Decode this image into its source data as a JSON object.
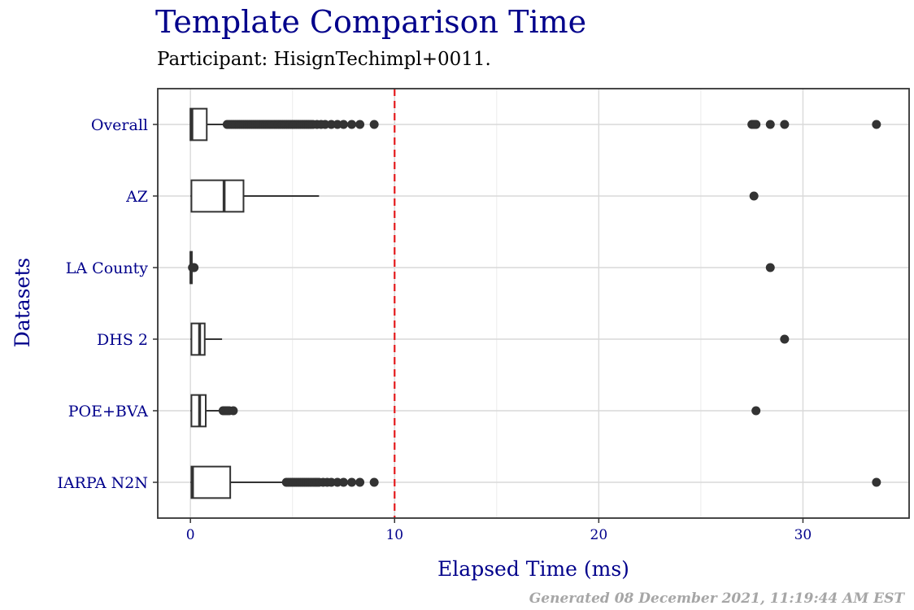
{
  "chart_data": {
    "type": "boxplot",
    "orientation": "horizontal",
    "title": "Template Comparison Time",
    "subtitle": "Participant: HisignTechimpl+0011.",
    "xlabel": "Elapsed Time (ms)",
    "ylabel": "Datasets",
    "xlim": [
      -1.6,
      35.2
    ],
    "x_ticks": [
      0,
      10,
      20,
      30
    ],
    "threshold_line": {
      "value": 10,
      "color": "#e41a1c",
      "style": "dashed"
    },
    "grid": true,
    "categories": [
      "Overall",
      "AZ",
      "LA County",
      "DHS 2",
      "POE+BVA",
      "IARPA N2N"
    ],
    "boxes": [
      {
        "name": "Overall",
        "min": 0.0,
        "q1": 0.0,
        "median": 0.07,
        "q3": 0.8,
        "whisker_high": 1.7,
        "outliers": [
          1.8,
          1.9,
          2.0,
          2.1,
          2.2,
          2.3,
          2.4,
          2.5,
          2.6,
          2.7,
          2.8,
          2.9,
          3.0,
          3.1,
          3.2,
          3.3,
          3.4,
          3.5,
          3.6,
          3.7,
          3.8,
          3.9,
          4.0,
          4.1,
          4.2,
          4.3,
          4.4,
          4.5,
          4.6,
          4.7,
          4.8,
          4.9,
          5.0,
          5.1,
          5.2,
          5.3,
          5.4,
          5.5,
          5.6,
          5.7,
          5.8,
          5.9,
          6.0,
          6.2,
          6.4,
          6.6,
          6.9,
          7.2,
          7.5,
          7.9,
          8.3,
          9.0,
          27.5,
          27.6,
          27.7,
          28.4,
          29.1,
          33.6
        ]
      },
      {
        "name": "AZ",
        "min": 0.0,
        "q1": 0.05,
        "median": 1.65,
        "q3": 2.6,
        "whisker_high": 6.3,
        "outliers": [
          27.6
        ]
      },
      {
        "name": "LA County",
        "min": 0.0,
        "q1": 0.0,
        "median": 0.03,
        "q3": 0.07,
        "whisker_high": 0.1,
        "outliers": [
          0.1,
          0.12,
          0.15,
          0.18,
          28.4
        ]
      },
      {
        "name": "DHS 2",
        "min": 0.0,
        "q1": 0.05,
        "median": 0.45,
        "q3": 0.7,
        "whisker_high": 1.55,
        "outliers": [
          29.1
        ]
      },
      {
        "name": "POE+BVA",
        "min": 0.0,
        "q1": 0.05,
        "median": 0.45,
        "q3": 0.75,
        "whisker_high": 1.4,
        "outliers": [
          1.6,
          1.7,
          1.8,
          1.9,
          2.1,
          27.7
        ]
      },
      {
        "name": "IARPA N2N",
        "min": 0.0,
        "q1": 0.05,
        "median": 0.1,
        "q3": 1.95,
        "whisker_high": 4.6,
        "outliers": [
          4.7,
          4.8,
          4.9,
          5.0,
          5.1,
          5.2,
          5.3,
          5.4,
          5.5,
          5.6,
          5.7,
          5.8,
          5.9,
          6.0,
          6.1,
          6.2,
          6.3,
          6.5,
          6.7,
          6.9,
          7.2,
          7.5,
          7.9,
          8.3,
          9.0,
          33.6
        ]
      }
    ]
  },
  "footer": "Generated 08 December 2021, 11:19:44 AM EST"
}
